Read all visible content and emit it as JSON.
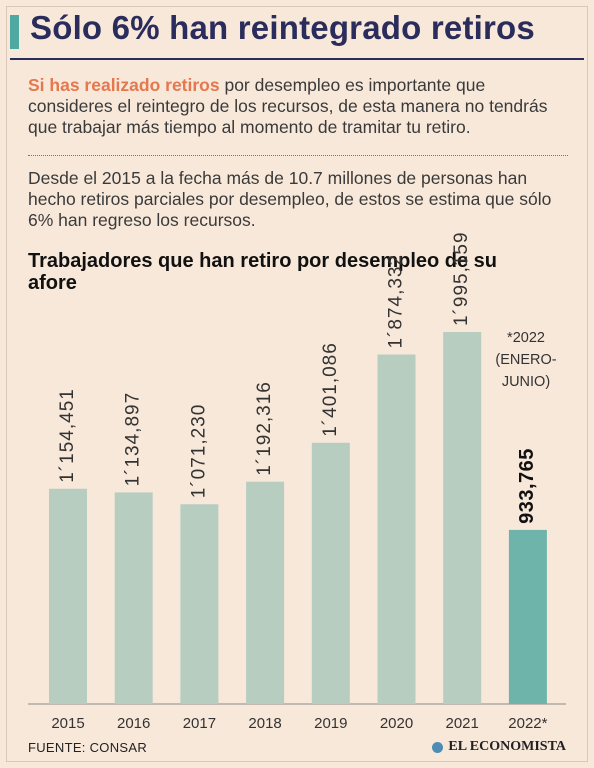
{
  "title": "Sólo 6% han reintegrado retiros",
  "intro": {
    "lead": "Si has realizado retiros",
    "rest": " por desempleo es importante que consideres el reintegro de los recursos, de esta manera no tendrás que trabajar más tiempo al momento de tramitar tu retiro."
  },
  "paragraph": "Desde el 2015 a la fecha más de 10.7 millones de personas han hecho retiros parciales por desempleo, de estos se estima que sólo 6% han regreso los recursos.",
  "source": "FUENTE: CONSAR",
  "logo": "EL ECONOMISTA",
  "colors": {
    "background": "#f8e8da",
    "title": "#2a2c5c",
    "accent": "#e4784e",
    "bar": "#b6cdc0",
    "bar_highlight": "#6fb4aa"
  },
  "chart_data": {
    "type": "bar",
    "title": "Trabajadores que han retiro por desempleo de su afore",
    "categories": [
      "2015",
      "2016",
      "2017",
      "2018",
      "2019",
      "2020",
      "2021",
      "2022*"
    ],
    "values": [
      1154451,
      1134897,
      1071230,
      1192316,
      1401086,
      1874332,
      1995159,
      933765
    ],
    "labels": [
      "1´154,451",
      "1´134,897",
      "1´071,230",
      "1´192,316",
      "1´401,086",
      "1´874,332",
      "1´995,159",
      "933,765"
    ],
    "highlight_index": 7,
    "note": [
      "*2022",
      "(ENERO-",
      "JUNIO)"
    ],
    "ylim": [
      0,
      2000000
    ]
  }
}
